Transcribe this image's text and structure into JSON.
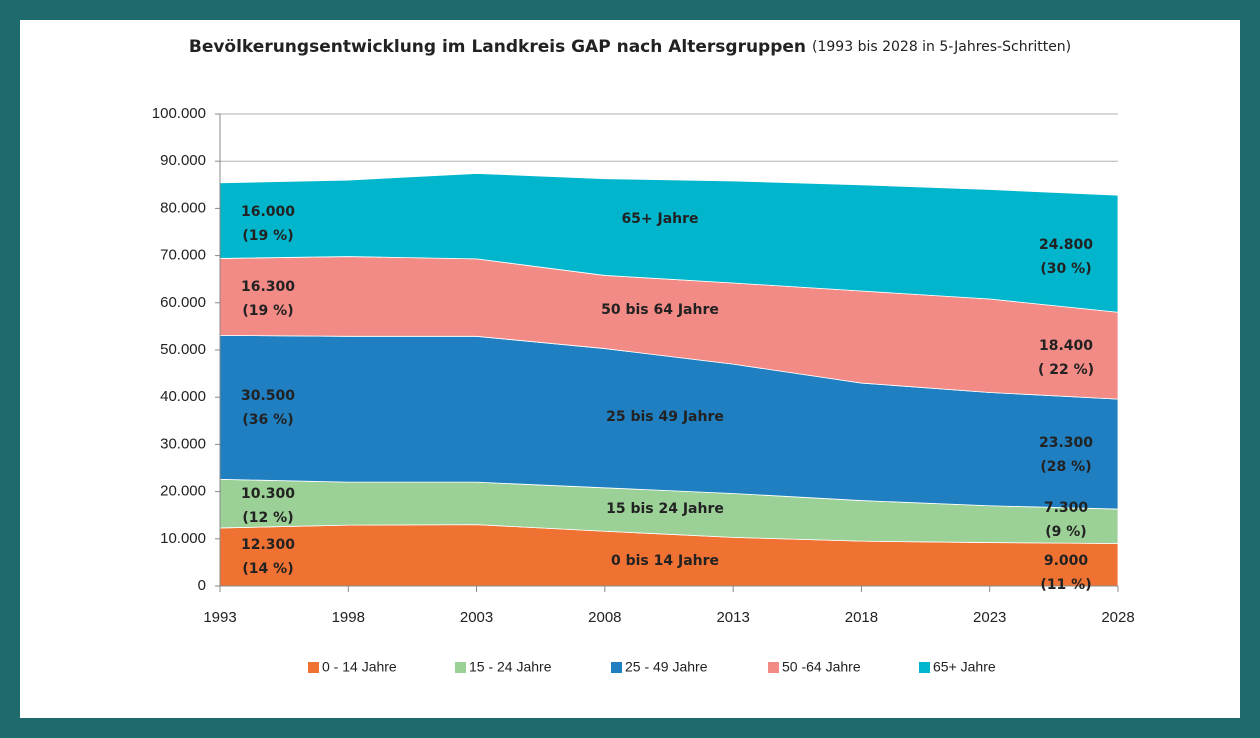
{
  "chart_data": {
    "type": "stacked_area",
    "title": "Bevölkerungsentwicklung im Landkreis GAP nach Altersgruppen",
    "subtitle": "(1993 bis 2028 in 5-Jahres-Schritten)",
    "x": [
      1993,
      1998,
      2003,
      2008,
      2013,
      2018,
      2023,
      2028
    ],
    "xlim": [
      1993,
      2028
    ],
    "xticks": [
      1993,
      1998,
      2003,
      2008,
      2013,
      2018,
      2023,
      2028
    ],
    "ylim": [
      0,
      100000
    ],
    "yticks": [
      0,
      {
        "value": 10000,
        "label": "10.000"
      },
      {
        "value": 20000,
        "label": "20.000"
      },
      {
        "value": 30000,
        "label": "30.000"
      },
      {
        "value": 40000,
        "label": "40.000"
      },
      {
        "value": 50000,
        "label": "50.000"
      },
      {
        "value": 60000,
        "label": "60.000"
      },
      {
        "value": 70000,
        "label": "70.000"
      },
      {
        "value": 80000,
        "label": "80.000"
      },
      {
        "value": 90000,
        "label": "90.000"
      },
      {
        "value": 100000,
        "label": "100.000"
      }
    ],
    "grid": true,
    "legend": "bottom",
    "series": [
      {
        "name": "0 - 14 Jahre",
        "label": "0 bis 14 Jahre",
        "color": "#f07233",
        "values": [
          12300,
          12900,
          13000,
          11600,
          10300,
          9500,
          9200,
          9000
        ],
        "value_labels": [
          "12.300",
          null,
          null,
          null,
          null,
          null,
          null,
          "9.000"
        ],
        "share_labels": [
          "(14 %)",
          null,
          null,
          null,
          null,
          null,
          null,
          "(11 %)"
        ]
      },
      {
        "name": "15 -  24 Jahre",
        "label": "15 bis 24 Jahre",
        "color": "#9bd096",
        "values": [
          10300,
          9100,
          9000,
          9200,
          9300,
          8600,
          7800,
          7300
        ],
        "value_labels": [
          "10.300",
          null,
          null,
          null,
          null,
          null,
          null,
          "7.300"
        ],
        "share_labels": [
          "(12 %)",
          null,
          null,
          null,
          null,
          null,
          null,
          "(9 %)"
        ]
      },
      {
        "name": "25 - 49 Jahre",
        "label": "25 bis 49 Jahre",
        "color": "#1f7fc0",
        "values": [
          30500,
          30900,
          30900,
          29500,
          27400,
          24900,
          24000,
          23300
        ],
        "value_labels": [
          "30.500",
          null,
          null,
          null,
          null,
          null,
          null,
          "23.300"
        ],
        "share_labels": [
          "(36 %)",
          null,
          null,
          null,
          null,
          null,
          null,
          "(28 %)"
        ]
      },
      {
        "name": "50 -64 Jahre",
        "label": "50 bis 64 Jahre",
        "color": "#f28a85",
        "values": [
          16300,
          16900,
          16400,
          15500,
          17200,
          19500,
          19800,
          18400
        ],
        "value_labels": [
          "16.300",
          null,
          null,
          null,
          null,
          null,
          null,
          "18.400"
        ],
        "share_labels": [
          "(19 %)",
          null,
          null,
          null,
          null,
          null,
          null,
          "( 22 %)"
        ]
      },
      {
        "name": "65+ Jahre",
        "label": "65+ Jahre",
        "color": "#00b5cc",
        "values": [
          16000,
          16200,
          18100,
          20500,
          21600,
          22500,
          23200,
          24800
        ],
        "value_labels": [
          "16.000",
          null,
          null,
          null,
          null,
          null,
          null,
          "24.800"
        ],
        "share_labels": [
          "(19 %)",
          null,
          null,
          null,
          null,
          null,
          null,
          "(30 %)"
        ]
      }
    ]
  }
}
